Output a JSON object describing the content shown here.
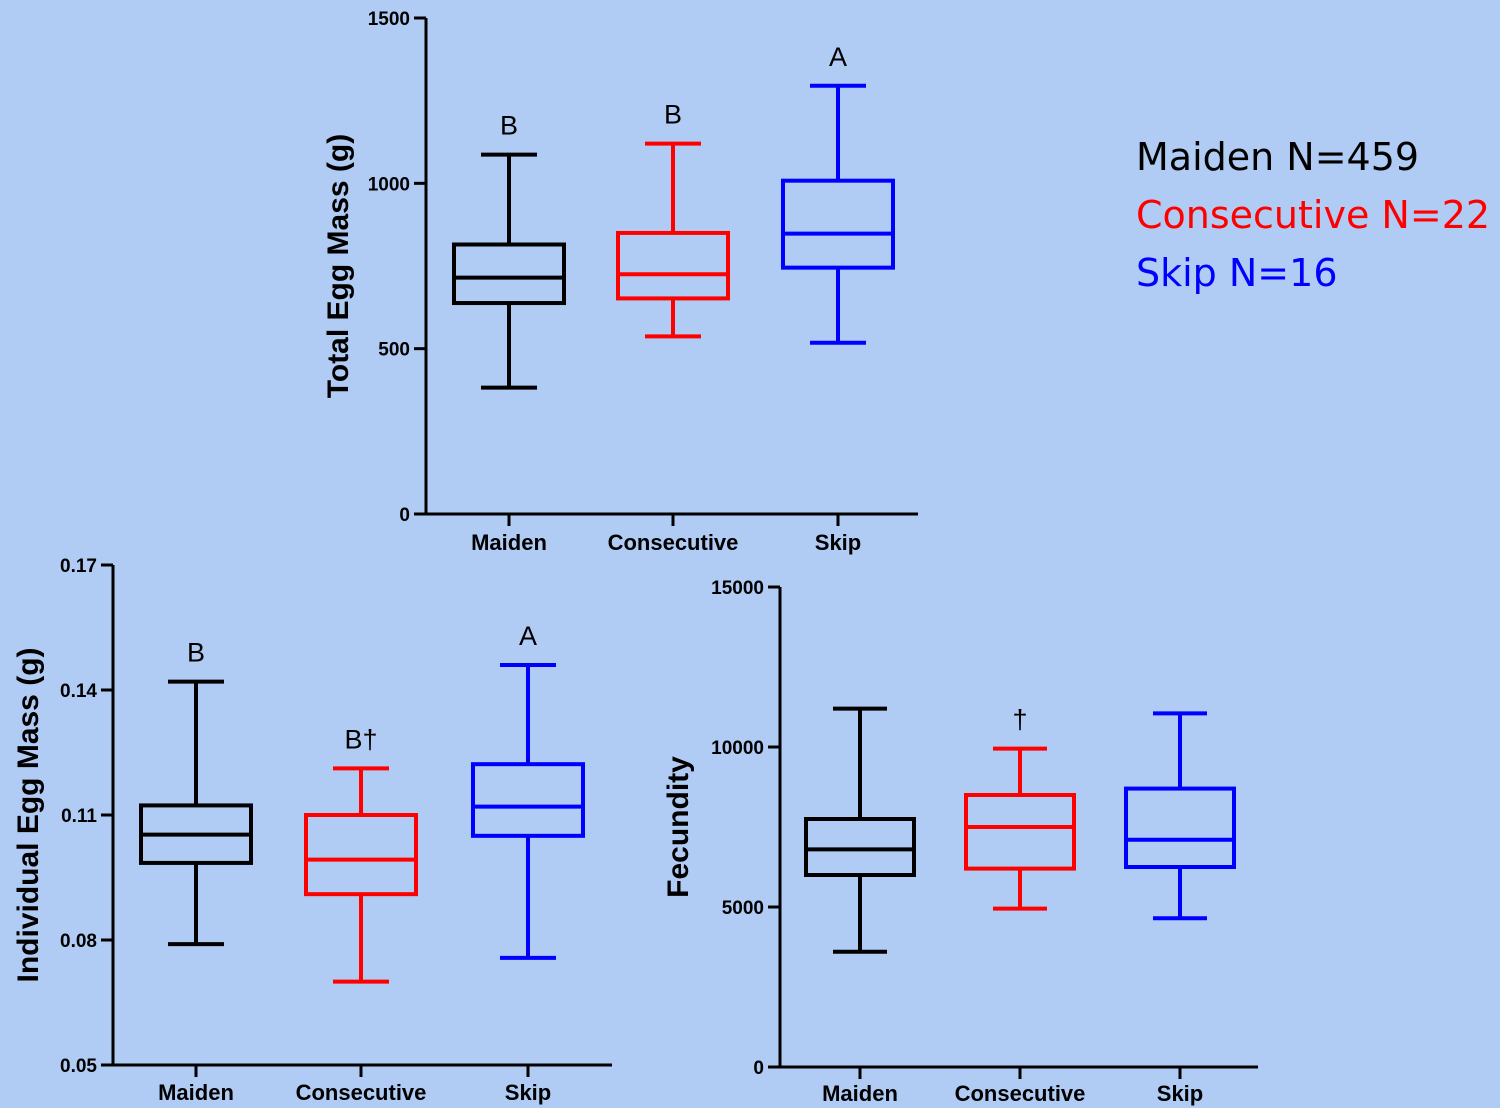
{
  "legend": {
    "items": [
      {
        "label": "Maiden N=459",
        "color": "#000000"
      },
      {
        "label": "Consecutive N=22",
        "color": "#ff0000"
      },
      {
        "label": "Skip N=16",
        "color": "#0000ff"
      }
    ]
  },
  "chart_data": [
    {
      "type": "box",
      "title": "",
      "xlabel": "",
      "ylabel": "Total Egg Mass (g)",
      "ylim": [
        0,
        1500
      ],
      "yticks": [
        0,
        500,
        1000,
        1500
      ],
      "categories": [
        "Maiden",
        "Consecutive",
        "Skip"
      ],
      "colors": [
        "#000000",
        "#ff0000",
        "#0000ff"
      ],
      "boxes": [
        {
          "min": 382,
          "q1": 638,
          "median": 715,
          "q3": 815,
          "max": 1087,
          "label": "B"
        },
        {
          "min": 537,
          "q1": 652,
          "median": 725,
          "q3": 850,
          "max": 1120,
          "label": "B"
        },
        {
          "min": 518,
          "q1": 745,
          "median": 848,
          "q3": 1008,
          "max": 1295,
          "label": "A"
        }
      ]
    },
    {
      "type": "box",
      "title": "",
      "xlabel": "",
      "ylabel": "Individual Egg Mass (g)",
      "ylim": [
        0.05,
        0.17
      ],
      "yticks": [
        0.05,
        0.08,
        0.11,
        0.14,
        0.17
      ],
      "categories": [
        "Maiden",
        "Consecutive",
        "Skip"
      ],
      "colors": [
        "#000000",
        "#ff0000",
        "#0000ff"
      ],
      "boxes": [
        {
          "min": 0.079,
          "q1": 0.0985,
          "median": 0.1053,
          "q3": 0.1123,
          "max": 0.142,
          "label": "B"
        },
        {
          "min": 0.07,
          "q1": 0.091,
          "median": 0.0993,
          "q3": 0.11,
          "max": 0.1212,
          "label": "B†"
        },
        {
          "min": 0.0757,
          "q1": 0.105,
          "median": 0.112,
          "q3": 0.1222,
          "max": 0.146,
          "label": "A"
        }
      ]
    },
    {
      "type": "box",
      "title": "",
      "xlabel": "",
      "ylabel": "Fecundity",
      "ylim": [
        0,
        15000
      ],
      "yticks": [
        0,
        5000,
        10000,
        15000
      ],
      "categories": [
        "Maiden",
        "Consecutive",
        "Skip"
      ],
      "colors": [
        "#000000",
        "#ff0000",
        "#0000ff"
      ],
      "boxes": [
        {
          "min": 3600,
          "q1": 6000,
          "median": 6800,
          "q3": 7750,
          "max": 11200,
          "label": ""
        },
        {
          "min": 4950,
          "q1": 6200,
          "median": 7500,
          "q3": 8500,
          "max": 9950,
          "label": "†"
        },
        {
          "min": 4650,
          "q1": 6250,
          "median": 7100,
          "q3": 8700,
          "max": 11050,
          "label": ""
        }
      ]
    }
  ]
}
